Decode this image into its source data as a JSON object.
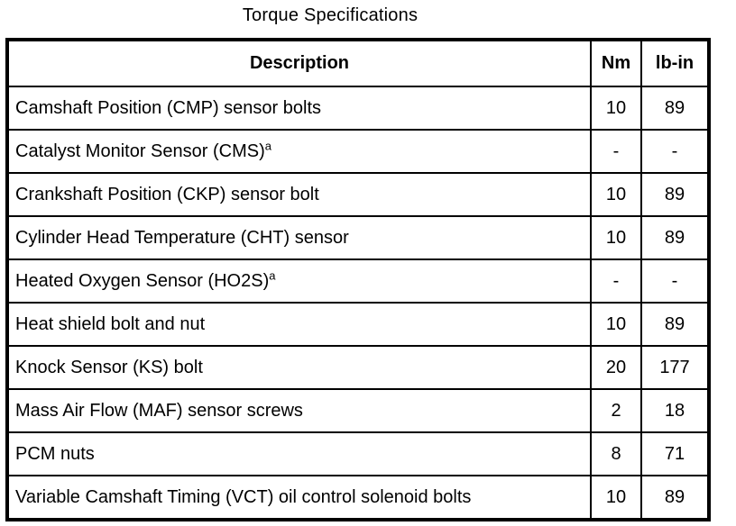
{
  "title": "Torque Specifications",
  "colors": {
    "border": "#000000",
    "text": "#000000",
    "background": "#ffffff"
  },
  "table": {
    "headers": [
      "Description",
      "Nm",
      "lb-in"
    ],
    "rows": [
      {
        "description": "Camshaft Position (CMP) sensor bolts",
        "footnote": "",
        "nm": "10",
        "lb_in": "89"
      },
      {
        "description": "Catalyst Monitor Sensor (CMS)",
        "footnote": "a",
        "nm": "-",
        "lb_in": "-"
      },
      {
        "description": "Crankshaft Position (CKP) sensor bolt",
        "footnote": "",
        "nm": "10",
        "lb_in": "89"
      },
      {
        "description": "Cylinder Head Temperature (CHT) sensor",
        "footnote": "",
        "nm": "10",
        "lb_in": "89"
      },
      {
        "description": "Heated Oxygen Sensor (HO2S)",
        "footnote": "a",
        "nm": "-",
        "lb_in": "-"
      },
      {
        "description": "Heat shield bolt and nut",
        "footnote": "",
        "nm": "10",
        "lb_in": "89"
      },
      {
        "description": "Knock Sensor (KS) bolt",
        "footnote": "",
        "nm": "20",
        "lb_in": "177"
      },
      {
        "description": "Mass Air Flow (MAF) sensor screws",
        "footnote": "",
        "nm": "2",
        "lb_in": "18"
      },
      {
        "description": "PCM nuts",
        "footnote": "",
        "nm": "8",
        "lb_in": "71"
      },
      {
        "description": "Variable Camshaft Timing (VCT) oil control solenoid bolts",
        "footnote": "",
        "nm": "10",
        "lb_in": "89"
      }
    ]
  }
}
